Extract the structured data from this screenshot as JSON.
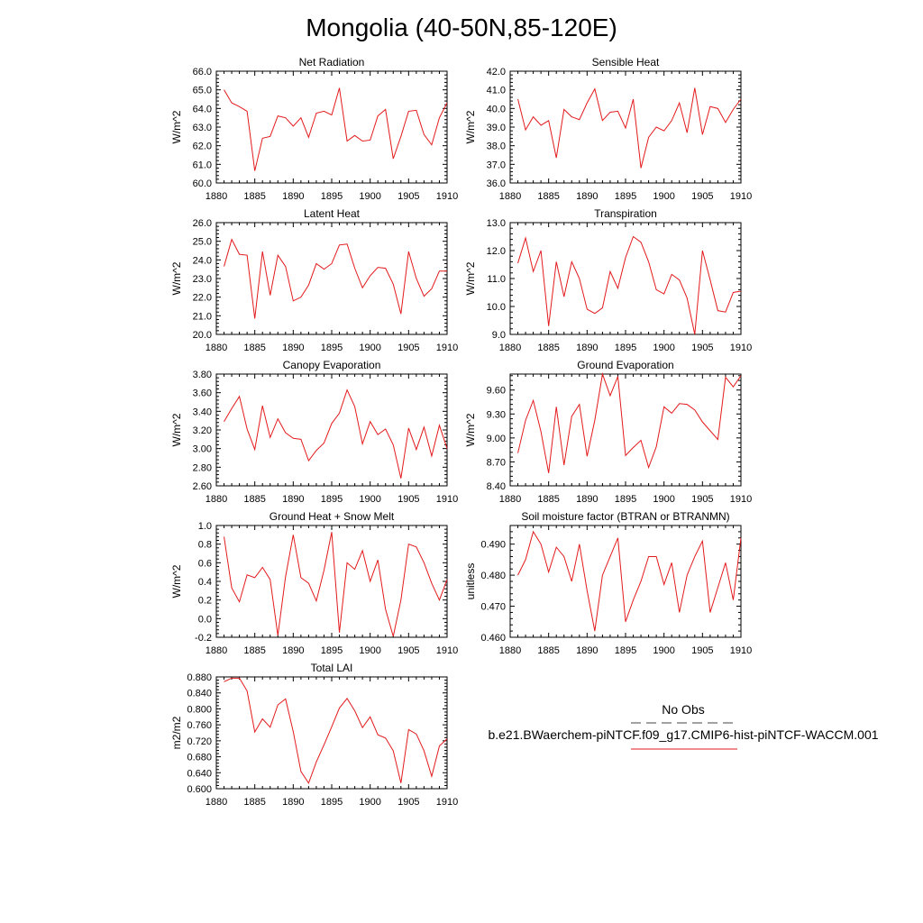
{
  "title": "Mongolia (40-50N,85-120E)",
  "colors": {
    "model_line": "#e31a1c",
    "obs_line": "#6b6b6b",
    "axis": "#000000"
  },
  "legend": {
    "obs_label": "No Obs",
    "model_label": "b.e21.BWaerchem-piNTCF.f09_g17.CMIP6-hist-piNTCF-WACCM.001"
  },
  "chart_data": [
    {
      "type": "line",
      "title": "Net Radiation",
      "xlabel": "",
      "ylabel": "W/m^2",
      "xlim": [
        1880,
        1910
      ],
      "ylim": [
        60,
        66
      ],
      "decimals": 1,
      "xticks": [
        1880,
        1885,
        1890,
        1895,
        1900,
        1905,
        1910
      ],
      "yticks": [
        60,
        61,
        62,
        63,
        64,
        65,
        66
      ],
      "x": [
        1881,
        1882,
        1883,
        1884,
        1885,
        1886,
        1887,
        1888,
        1889,
        1890,
        1891,
        1892,
        1893,
        1894,
        1895,
        1896,
        1897,
        1898,
        1899,
        1900,
        1901,
        1902,
        1903,
        1904,
        1905,
        1906,
        1907,
        1908,
        1909,
        1910
      ],
      "series": [
        {
          "values": [
            65.0,
            64.3,
            64.1,
            63.85,
            60.65,
            62.4,
            62.5,
            63.6,
            63.5,
            63.05,
            63.5,
            62.45,
            63.75,
            63.85,
            63.65,
            65.1,
            62.25,
            62.55,
            62.25,
            62.3,
            63.6,
            63.95,
            61.3,
            62.5,
            63.85,
            63.9,
            62.6,
            62.05,
            63.5,
            64.3
          ]
        }
      ]
    },
    {
      "type": "line",
      "title": "Sensible Heat",
      "xlabel": "",
      "ylabel": "W/m^2",
      "xlim": [
        1880,
        1910
      ],
      "ylim": [
        36,
        42
      ],
      "decimals": 1,
      "xticks": [
        1880,
        1885,
        1890,
        1895,
        1900,
        1905,
        1910
      ],
      "yticks": [
        36,
        37,
        38,
        39,
        40,
        41,
        42
      ],
      "x": [
        1881,
        1882,
        1883,
        1884,
        1885,
        1886,
        1887,
        1888,
        1889,
        1890,
        1891,
        1892,
        1893,
        1894,
        1895,
        1896,
        1897,
        1898,
        1899,
        1900,
        1901,
        1902,
        1903,
        1904,
        1905,
        1906,
        1907,
        1908,
        1909,
        1910
      ],
      "series": [
        {
          "values": [
            40.5,
            38.85,
            39.55,
            39.1,
            39.35,
            37.35,
            39.95,
            39.55,
            39.4,
            40.3,
            41.05,
            39.35,
            39.8,
            39.85,
            38.95,
            40.5,
            36.8,
            38.45,
            39.0,
            38.8,
            39.35,
            40.3,
            38.7,
            41.1,
            38.6,
            40.1,
            40.0,
            39.25,
            39.95,
            40.5
          ]
        }
      ]
    },
    {
      "type": "line",
      "title": "Latent Heat",
      "xlabel": "",
      "ylabel": "W/m^2",
      "xlim": [
        1880,
        1910
      ],
      "ylim": [
        20,
        26
      ],
      "decimals": 1,
      "xticks": [
        1880,
        1885,
        1890,
        1895,
        1900,
        1905,
        1910
      ],
      "yticks": [
        20,
        21,
        22,
        23,
        24,
        25,
        26
      ],
      "x": [
        1881,
        1882,
        1883,
        1884,
        1885,
        1886,
        1887,
        1888,
        1889,
        1890,
        1891,
        1892,
        1893,
        1894,
        1895,
        1896,
        1897,
        1898,
        1899,
        1900,
        1901,
        1902,
        1903,
        1904,
        1905,
        1906,
        1907,
        1908,
        1909,
        1910
      ],
      "series": [
        {
          "values": [
            23.65,
            25.1,
            24.3,
            24.25,
            20.85,
            24.45,
            22.1,
            24.25,
            23.65,
            21.8,
            22.0,
            22.65,
            23.8,
            23.5,
            23.8,
            24.8,
            24.85,
            23.55,
            22.5,
            23.15,
            23.6,
            23.55,
            22.7,
            21.1,
            24.45,
            23.0,
            22.05,
            22.45,
            23.4,
            23.4
          ]
        }
      ]
    },
    {
      "type": "line",
      "title": "Transpiration",
      "xlabel": "",
      "ylabel": "W/m^2",
      "xlim": [
        1880,
        1910
      ],
      "ylim": [
        9,
        13
      ],
      "decimals": 1,
      "xticks": [
        1880,
        1885,
        1890,
        1895,
        1900,
        1905,
        1910
      ],
      "yticks": [
        9,
        10,
        11,
        12,
        13
      ],
      "x": [
        1881,
        1882,
        1883,
        1884,
        1885,
        1886,
        1887,
        1888,
        1889,
        1890,
        1891,
        1892,
        1893,
        1894,
        1895,
        1896,
        1897,
        1898,
        1899,
        1900,
        1901,
        1902,
        1903,
        1904,
        1905,
        1906,
        1907,
        1908,
        1909,
        1910
      ],
      "series": [
        {
          "values": [
            11.55,
            12.45,
            11.25,
            12.0,
            9.3,
            11.6,
            10.35,
            11.6,
            11.0,
            9.9,
            9.75,
            9.95,
            11.25,
            10.65,
            11.75,
            12.5,
            12.3,
            11.6,
            10.6,
            10.45,
            11.15,
            10.95,
            10.3,
            9.0,
            12.0,
            10.95,
            9.85,
            9.8,
            10.5,
            10.55
          ]
        }
      ]
    },
    {
      "type": "line",
      "title": "Canopy Evaporation",
      "xlabel": "",
      "ylabel": "W/m^2",
      "xlim": [
        1880,
        1910
      ],
      "ylim": [
        2.6,
        3.8
      ],
      "decimals": 2,
      "xticks": [
        1880,
        1885,
        1890,
        1895,
        1900,
        1905,
        1910
      ],
      "yticks": [
        2.6,
        2.8,
        3.0,
        3.2,
        3.4,
        3.6,
        3.8
      ],
      "x": [
        1881,
        1882,
        1883,
        1884,
        1885,
        1886,
        1887,
        1888,
        1889,
        1890,
        1891,
        1892,
        1893,
        1894,
        1895,
        1896,
        1897,
        1898,
        1899,
        1900,
        1901,
        1902,
        1903,
        1904,
        1905,
        1906,
        1907,
        1908,
        1909,
        1910
      ],
      "series": [
        {
          "values": [
            3.29,
            3.43,
            3.56,
            3.21,
            2.99,
            3.46,
            3.12,
            3.32,
            3.17,
            3.11,
            3.1,
            2.87,
            2.98,
            3.06,
            3.27,
            3.38,
            3.63,
            3.45,
            3.05,
            3.29,
            3.15,
            3.21,
            3.04,
            2.68,
            3.22,
            2.99,
            3.23,
            2.92,
            3.25,
            3.0
          ]
        }
      ]
    },
    {
      "type": "line",
      "title": "Ground Evaporation",
      "xlabel": "",
      "ylabel": "W/m^2",
      "xlim": [
        1880,
        1910
      ],
      "ylim": [
        8.4,
        9.8
      ],
      "decimals": 2,
      "xticks": [
        1880,
        1885,
        1890,
        1895,
        1900,
        1905,
        1910
      ],
      "yticks": [
        8.4,
        8.7,
        9.0,
        9.3,
        9.6
      ],
      "x": [
        1881,
        1882,
        1883,
        1884,
        1885,
        1886,
        1887,
        1888,
        1889,
        1890,
        1891,
        1892,
        1893,
        1894,
        1895,
        1896,
        1897,
        1898,
        1899,
        1900,
        1901,
        1902,
        1903,
        1904,
        1905,
        1906,
        1907,
        1908,
        1909,
        1910
      ],
      "series": [
        {
          "values": [
            8.81,
            9.22,
            9.47,
            9.08,
            8.56,
            9.39,
            8.66,
            9.27,
            9.42,
            8.77,
            9.22,
            9.8,
            9.53,
            9.77,
            8.78,
            8.88,
            8.97,
            8.63,
            8.89,
            9.39,
            9.31,
            9.43,
            9.42,
            9.35,
            9.2,
            9.09,
            8.98,
            9.76,
            9.64,
            9.78
          ]
        }
      ]
    },
    {
      "type": "line",
      "title": "Ground Heat + Snow Melt",
      "xlabel": "",
      "ylabel": "W/m^2",
      "xlim": [
        1880,
        1910
      ],
      "ylim": [
        -0.2,
        1.0
      ],
      "decimals": 1,
      "xticks": [
        1880,
        1885,
        1890,
        1895,
        1900,
        1905,
        1910
      ],
      "yticks": [
        -0.2,
        0.0,
        0.2,
        0.4,
        0.6,
        0.8,
        1.0
      ],
      "x": [
        1881,
        1882,
        1883,
        1884,
        1885,
        1886,
        1887,
        1888,
        1889,
        1890,
        1891,
        1892,
        1893,
        1894,
        1895,
        1896,
        1897,
        1898,
        1899,
        1900,
        1901,
        1902,
        1903,
        1904,
        1905,
        1906,
        1907,
        1908,
        1909,
        1910
      ],
      "series": [
        {
          "values": [
            0.88,
            0.33,
            0.18,
            0.47,
            0.44,
            0.55,
            0.42,
            -0.18,
            0.45,
            0.9,
            0.44,
            0.38,
            0.19,
            0.52,
            0.93,
            -0.15,
            0.6,
            0.53,
            0.73,
            0.4,
            0.63,
            0.1,
            -0.19,
            0.2,
            0.8,
            0.77,
            0.6,
            0.38,
            0.2,
            0.42
          ]
        }
      ]
    },
    {
      "type": "line",
      "title": "Soil moisture factor (BTRAN or BTRANMN)",
      "xlabel": "",
      "ylabel": "unitless",
      "xlim": [
        1880,
        1910
      ],
      "ylim": [
        0.46,
        0.496
      ],
      "decimals": 3,
      "xticks": [
        1880,
        1885,
        1890,
        1895,
        1900,
        1905,
        1910
      ],
      "yticks": [
        0.46,
        0.47,
        0.48,
        0.49
      ],
      "x": [
        1881,
        1882,
        1883,
        1884,
        1885,
        1886,
        1887,
        1888,
        1889,
        1890,
        1891,
        1892,
        1893,
        1894,
        1895,
        1896,
        1897,
        1898,
        1899,
        1900,
        1901,
        1902,
        1903,
        1904,
        1905,
        1906,
        1907,
        1908,
        1909,
        1910
      ],
      "series": [
        {
          "values": [
            0.48,
            0.485,
            0.494,
            0.49,
            0.481,
            0.489,
            0.486,
            0.478,
            0.49,
            0.475,
            0.462,
            0.48,
            0.486,
            0.492,
            0.465,
            0.472,
            0.478,
            0.486,
            0.486,
            0.477,
            0.484,
            0.468,
            0.48,
            0.486,
            0.491,
            0.468,
            0.476,
            0.484,
            0.472,
            0.492
          ]
        }
      ]
    },
    {
      "type": "line",
      "title": "Total LAI",
      "xlabel": "",
      "ylabel": "m2/m2",
      "xlim": [
        1880,
        1910
      ],
      "ylim": [
        0.6,
        0.88
      ],
      "decimals": 3,
      "xticks": [
        1880,
        1885,
        1890,
        1895,
        1900,
        1905,
        1910
      ],
      "yticks": [
        0.6,
        0.64,
        0.68,
        0.72,
        0.76,
        0.8,
        0.84,
        0.88
      ],
      "x": [
        1881,
        1882,
        1883,
        1884,
        1885,
        1886,
        1887,
        1888,
        1889,
        1890,
        1891,
        1892,
        1893,
        1894,
        1895,
        1896,
        1897,
        1898,
        1899,
        1900,
        1901,
        1902,
        1903,
        1904,
        1905,
        1906,
        1907,
        1908,
        1909,
        1910
      ],
      "series": [
        {
          "values": [
            0.868,
            0.877,
            0.877,
            0.845,
            0.742,
            0.775,
            0.754,
            0.81,
            0.825,
            0.743,
            0.643,
            0.614,
            0.667,
            0.71,
            0.755,
            0.802,
            0.826,
            0.795,
            0.753,
            0.78,
            0.735,
            0.727,
            0.695,
            0.614,
            0.748,
            0.737,
            0.695,
            0.631,
            0.707,
            0.725
          ]
        }
      ]
    }
  ]
}
